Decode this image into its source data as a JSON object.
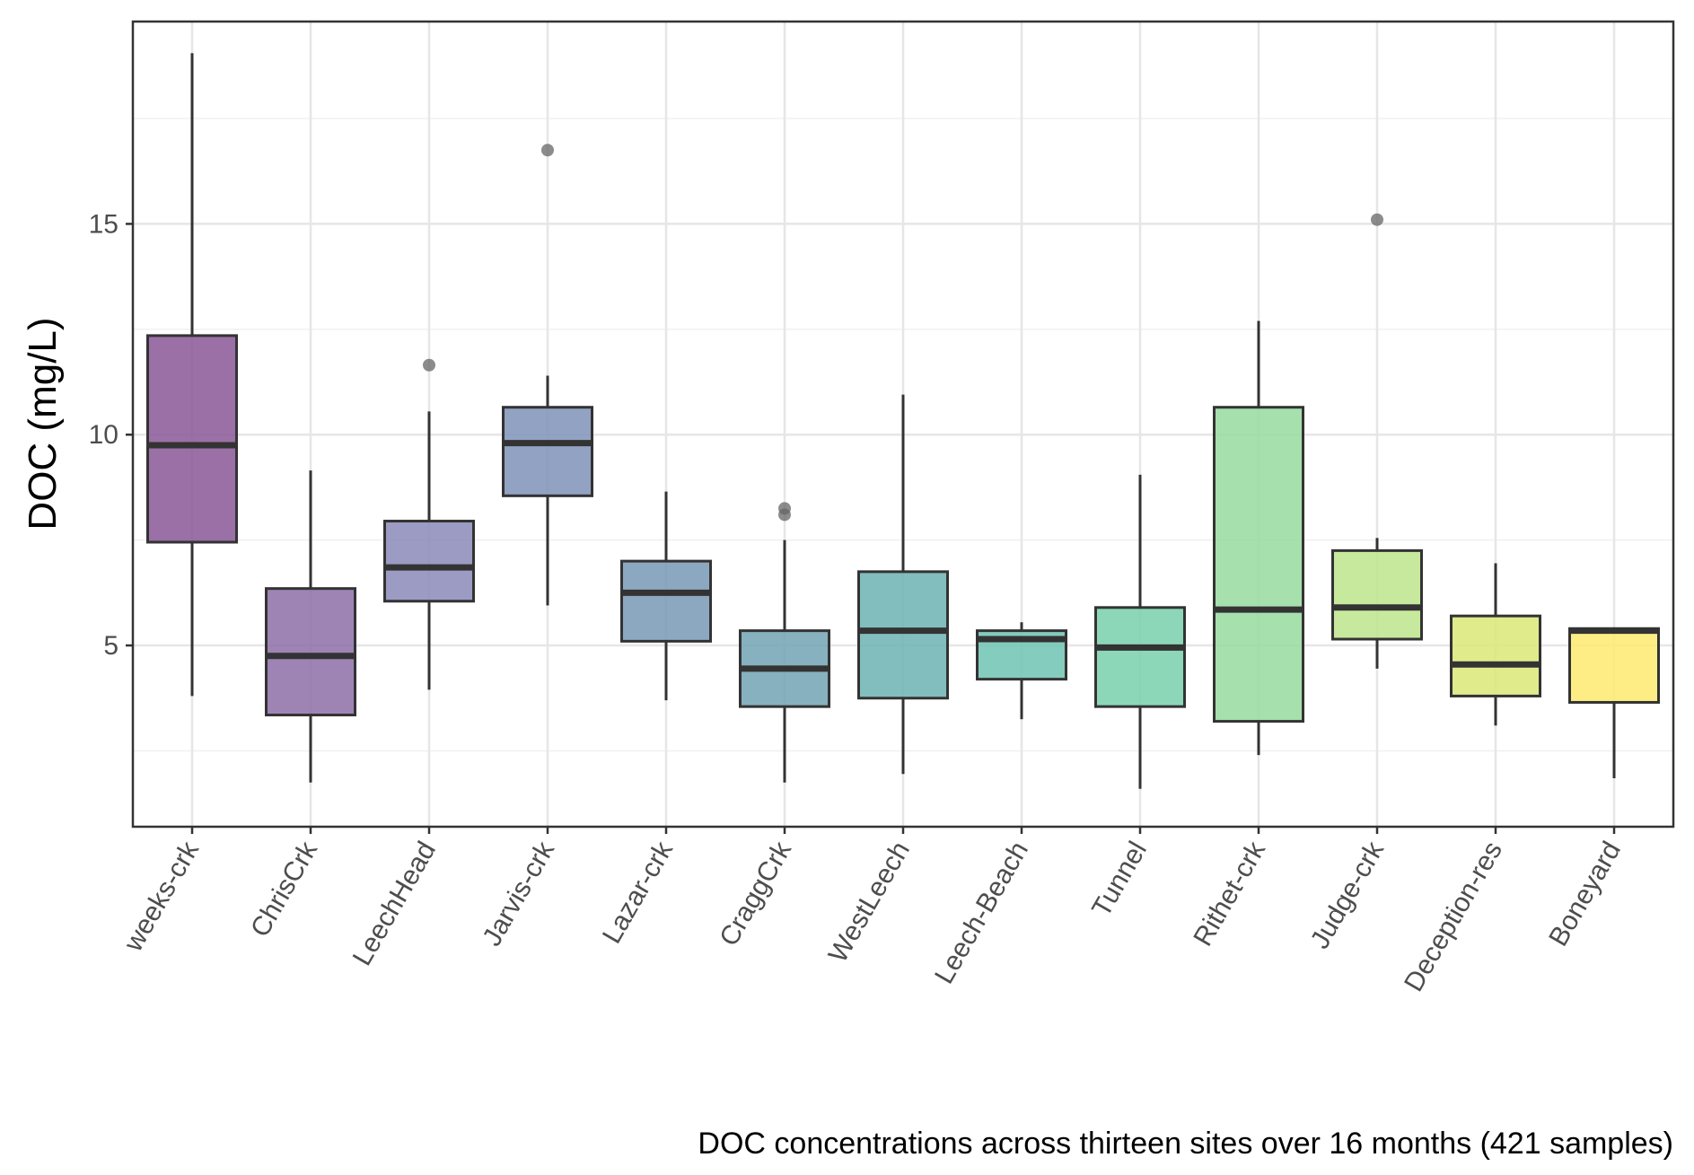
{
  "chart_data": {
    "type": "boxplot",
    "title": "",
    "xlabel": "",
    "ylabel": "DOC (mg/L)",
    "caption": "DOC concentrations across thirteen sites over 16 months (421 samples)",
    "ylim": [
      0.7,
      19.8
    ],
    "y_ticks": [
      5,
      10,
      15
    ],
    "grid": true,
    "categories": [
      "weeks-crk",
      "ChrisCrk",
      "LeechHead",
      "Jarvis-crk",
      "Lazar-crk",
      "CraggCrk",
      "WestLeech",
      "Leech-Beach",
      "Tunnel",
      "Rithet-crk",
      "Judge-crk",
      "Deception-res",
      "Boneyard"
    ],
    "boxes": [
      {
        "label": "weeks-crk",
        "whisker_low": 3.8,
        "q1": 7.45,
        "median": 9.75,
        "q3": 12.35,
        "whisker_high": 19.05,
        "outliers": [],
        "color": "#8a5796"
      },
      {
        "label": "ChrisCrk",
        "whisker_low": 1.75,
        "q1": 3.35,
        "median": 4.75,
        "q3": 6.35,
        "whisker_high": 9.15,
        "outliers": [],
        "color": "#8c6ea8"
      },
      {
        "label": "LeechHead",
        "whisker_low": 3.95,
        "q1": 6.05,
        "median": 6.85,
        "q3": 7.95,
        "whisker_high": 10.55,
        "outliers": [
          11.65
        ],
        "color": "#8a8ab8"
      },
      {
        "label": "Jarvis-crk",
        "whisker_low": 5.95,
        "q1": 8.55,
        "median": 9.8,
        "q3": 10.65,
        "whisker_high": 11.4,
        "outliers": [
          16.75
        ],
        "color": "#7f92b8"
      },
      {
        "label": "Lazar-crk",
        "whisker_low": 3.7,
        "q1": 5.1,
        "median": 6.25,
        "q3": 7.0,
        "whisker_high": 8.65,
        "outliers": [],
        "color": "#7899b6"
      },
      {
        "label": "CraggCrk",
        "whisker_low": 1.75,
        "q1": 3.55,
        "median": 4.45,
        "q3": 5.35,
        "whisker_high": 7.5,
        "outliers": [
          8.1,
          8.25
        ],
        "color": "#72a3b3"
      },
      {
        "label": "WestLeech",
        "whisker_low": 1.95,
        "q1": 3.75,
        "median": 5.35,
        "q3": 6.75,
        "whisker_high": 10.95,
        "outliers": [],
        "color": "#6cb3b2"
      },
      {
        "label": "Leech-Beach",
        "whisker_low": 3.25,
        "q1": 4.2,
        "median": 5.15,
        "q3": 5.35,
        "whisker_high": 5.55,
        "outliers": [],
        "color": "#6ec3b2"
      },
      {
        "label": "Tunnel",
        "whisker_low": 1.6,
        "q1": 3.55,
        "median": 4.95,
        "q3": 5.9,
        "whisker_high": 9.05,
        "outliers": [],
        "color": "#78d0ac"
      },
      {
        "label": "Rithet-crk",
        "whisker_low": 2.4,
        "q1": 3.2,
        "median": 5.85,
        "q3": 10.65,
        "whisker_high": 12.7,
        "outliers": [],
        "color": "#95db9f"
      },
      {
        "label": "Judge-crk",
        "whisker_low": 4.45,
        "q1": 5.15,
        "median": 5.9,
        "q3": 7.25,
        "whisker_high": 7.55,
        "outliers": [
          15.1
        ],
        "color": "#bde58c"
      },
      {
        "label": "Deception-res",
        "whisker_low": 3.1,
        "q1": 3.8,
        "median": 4.55,
        "q3": 5.7,
        "whisker_high": 6.95,
        "outliers": [],
        "color": "#dbe878"
      },
      {
        "label": "Boneyard",
        "whisker_low": 1.85,
        "q1": 3.65,
        "median": 5.35,
        "q3": 5.4,
        "whisker_high": 5.4,
        "outliers": [],
        "color": "#fdea6e"
      }
    ]
  }
}
